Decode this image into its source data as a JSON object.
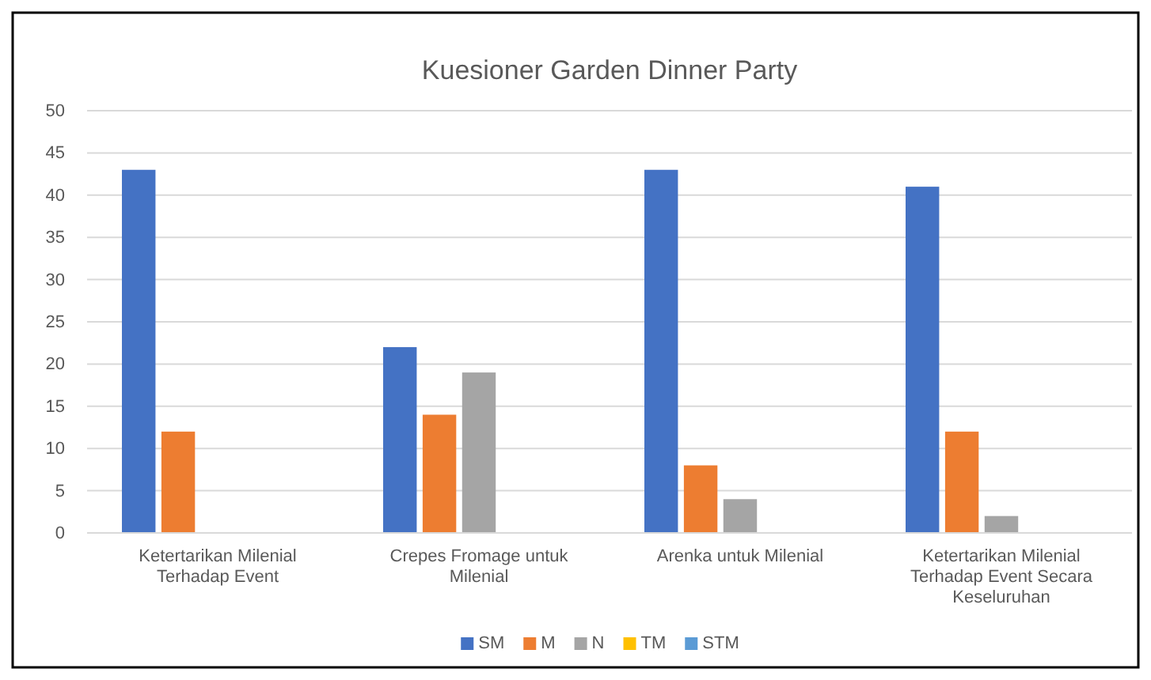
{
  "chart_data": {
    "type": "bar",
    "title": "Kuesioner Garden Dinner Party",
    "categories": [
      "Ketertarikan Milenial Terhadap Event",
      "Crepes Fromage untuk Milenial",
      "Arenka untuk Milenial",
      "Ketertarikan Milenial Terhadap Event Secara Keseluruhan"
    ],
    "series": [
      {
        "name": "SM",
        "color": "#4472c4",
        "values": [
          43,
          22,
          43,
          41
        ]
      },
      {
        "name": "M",
        "color": "#ed7d31",
        "values": [
          12,
          14,
          8,
          12
        ]
      },
      {
        "name": "N",
        "color": "#a5a5a5",
        "values": [
          0,
          19,
          4,
          2
        ]
      },
      {
        "name": "TM",
        "color": "#ffc000",
        "values": [
          0,
          0,
          0,
          0
        ]
      },
      {
        "name": "STM",
        "color": "#5b9bd5",
        "values": [
          0,
          0,
          0,
          0
        ]
      }
    ],
    "ylim": [
      0,
      50
    ],
    "yticks": [
      0,
      5,
      10,
      15,
      20,
      25,
      30,
      35,
      40,
      45,
      50
    ],
    "grid": "y",
    "legend": "bottom"
  }
}
